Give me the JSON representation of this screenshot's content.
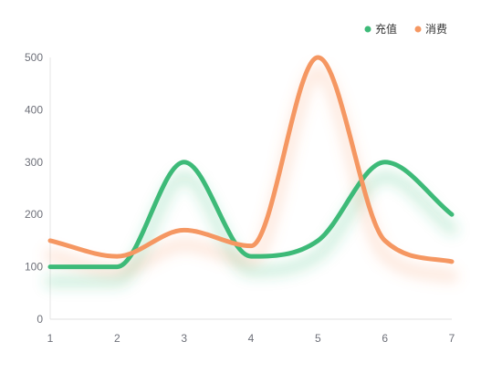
{
  "chart_data": {
    "type": "line",
    "categories": [
      "1",
      "2",
      "3",
      "4",
      "5",
      "6",
      "7"
    ],
    "series": [
      {
        "name": "充值",
        "values": [
          100,
          100,
          300,
          120,
          150,
          300,
          200
        ],
        "color": "#3dba78"
      },
      {
        "name": "消费",
        "values": [
          150,
          120,
          170,
          140,
          500,
          150,
          110
        ],
        "color": "#f59762"
      }
    ],
    "ylim": [
      0,
      500
    ],
    "yticks": [
      0,
      100,
      200,
      300,
      400,
      500
    ],
    "smooth": true,
    "grid": false,
    "legend": "top-right"
  }
}
